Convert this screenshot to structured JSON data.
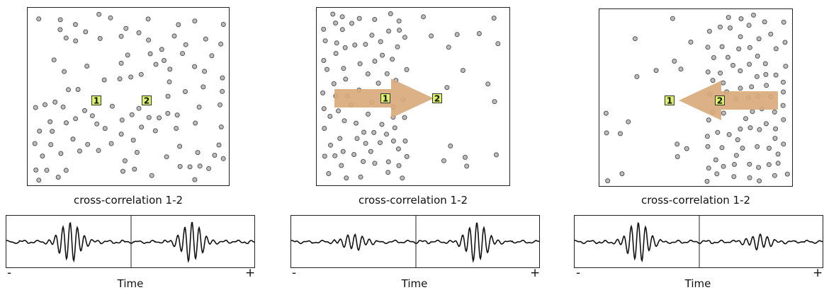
{
  "panels": [
    {
      "id": "uniform",
      "caption": "cross-correlation 1-2",
      "arrow": "none",
      "receivers": [
        {
          "label": "1"
        },
        {
          "label": "2"
        }
      ],
      "axis": {
        "minus": "-",
        "plus": "+",
        "label": "Time"
      },
      "wave": {
        "neg_amp": 1.0,
        "pos_amp": 1.0
      }
    },
    {
      "id": "sources-left",
      "caption": "cross-correlation 1-2",
      "arrow": "right",
      "receivers": [
        {
          "label": "1"
        },
        {
          "label": "2"
        }
      ],
      "axis": {
        "minus": "-",
        "plus": "+",
        "label": "Time"
      },
      "wave": {
        "neg_amp": 0.42,
        "pos_amp": 1.0
      }
    },
    {
      "id": "sources-right",
      "caption": "cross-correlation 1-2",
      "arrow": "left",
      "receivers": [
        {
          "label": "1"
        },
        {
          "label": "2"
        }
      ],
      "axis": {
        "minus": "-",
        "plus": "+",
        "label": "Time"
      },
      "wave": {
        "neg_amp": 1.0,
        "pos_amp": 0.38
      }
    }
  ],
  "colors": {
    "receiver_fill": "#d9f26a",
    "receiver_border": "#333333",
    "arrow_fill": "#d9aa7c",
    "scatterer_fill": "#bdbdbd",
    "scatterer_stroke": "#555555",
    "wave_stroke": "#111111"
  }
}
